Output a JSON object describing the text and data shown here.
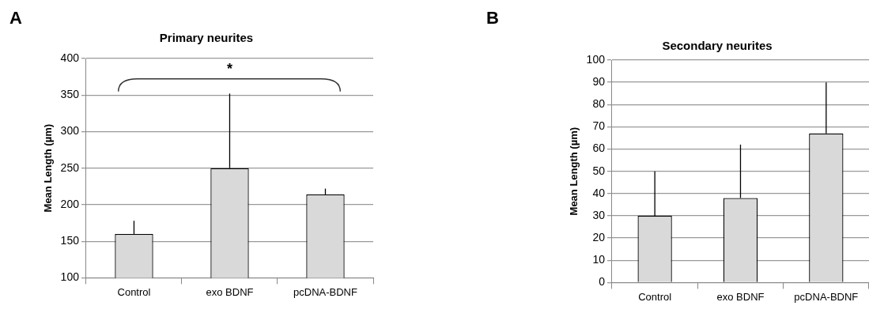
{
  "chart_data": [
    {
      "type": "bar",
      "title": "Primary neurites",
      "ylabel": "Mean Length (µm)",
      "categories": [
        "Control",
        "exo BDNF",
        "pcDNA-BDNF"
      ],
      "values": [
        160,
        250,
        214
      ],
      "errors": [
        [
          160,
          178
        ],
        [
          250,
          352
        ],
        [
          214,
          222
        ]
      ],
      "color": "#d9d9d9",
      "ylim": [
        100,
        400
      ],
      "yticks": [
        100,
        150,
        200,
        250,
        300,
        350,
        400
      ],
      "grid": "y",
      "legend": false,
      "annotations": [
        "A",
        "*"
      ]
    },
    {
      "type": "bar",
      "title": "Secondary neurites",
      "ylabel": "Mean Length (µm)",
      "categories": [
        "Control",
        "exo BDNF",
        "pcDNA-BDNF"
      ],
      "values": [
        30,
        38,
        67
      ],
      "errors": [
        [
          30,
          50
        ],
        [
          38,
          62
        ],
        [
          67,
          90
        ]
      ],
      "color": "#d9d9d9",
      "ylim": [
        0,
        100
      ],
      "yticks": [
        0,
        10,
        20,
        30,
        40,
        50,
        60,
        70,
        80,
        90,
        100
      ],
      "grid": "y",
      "legend": false,
      "annotations": [
        "B"
      ]
    }
  ]
}
